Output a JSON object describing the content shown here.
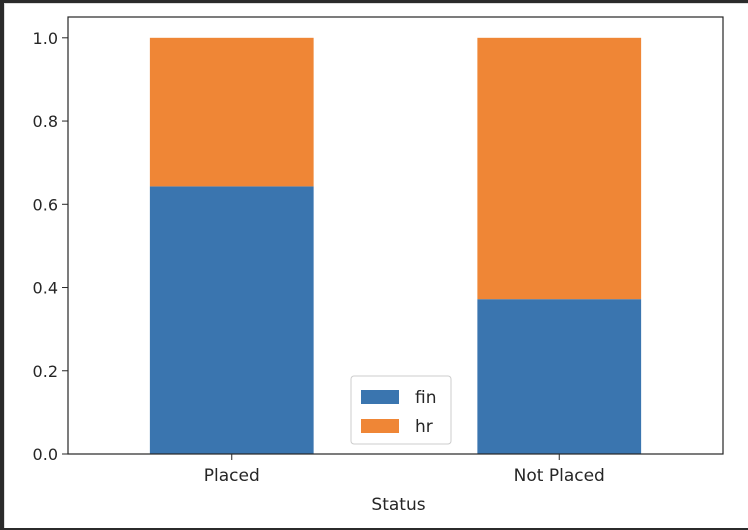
{
  "chart_data": {
    "type": "bar",
    "stacked": true,
    "categories": [
      "Placed",
      "Not Placed"
    ],
    "series": [
      {
        "name": "fin",
        "values": [
          0.643,
          0.372
        ],
        "color": "#3a75af"
      },
      {
        "name": "hr",
        "values": [
          0.357,
          0.628
        ],
        "color": "#ef8636"
      }
    ],
    "title": "",
    "xlabel": "Status",
    "ylabel": "",
    "ylim": [
      0,
      1.05
    ],
    "yticks": [
      "0.0",
      "0.2",
      "0.4",
      "0.6",
      "0.8",
      "1.0"
    ],
    "grid": false,
    "legend_position": "bottom-center"
  }
}
